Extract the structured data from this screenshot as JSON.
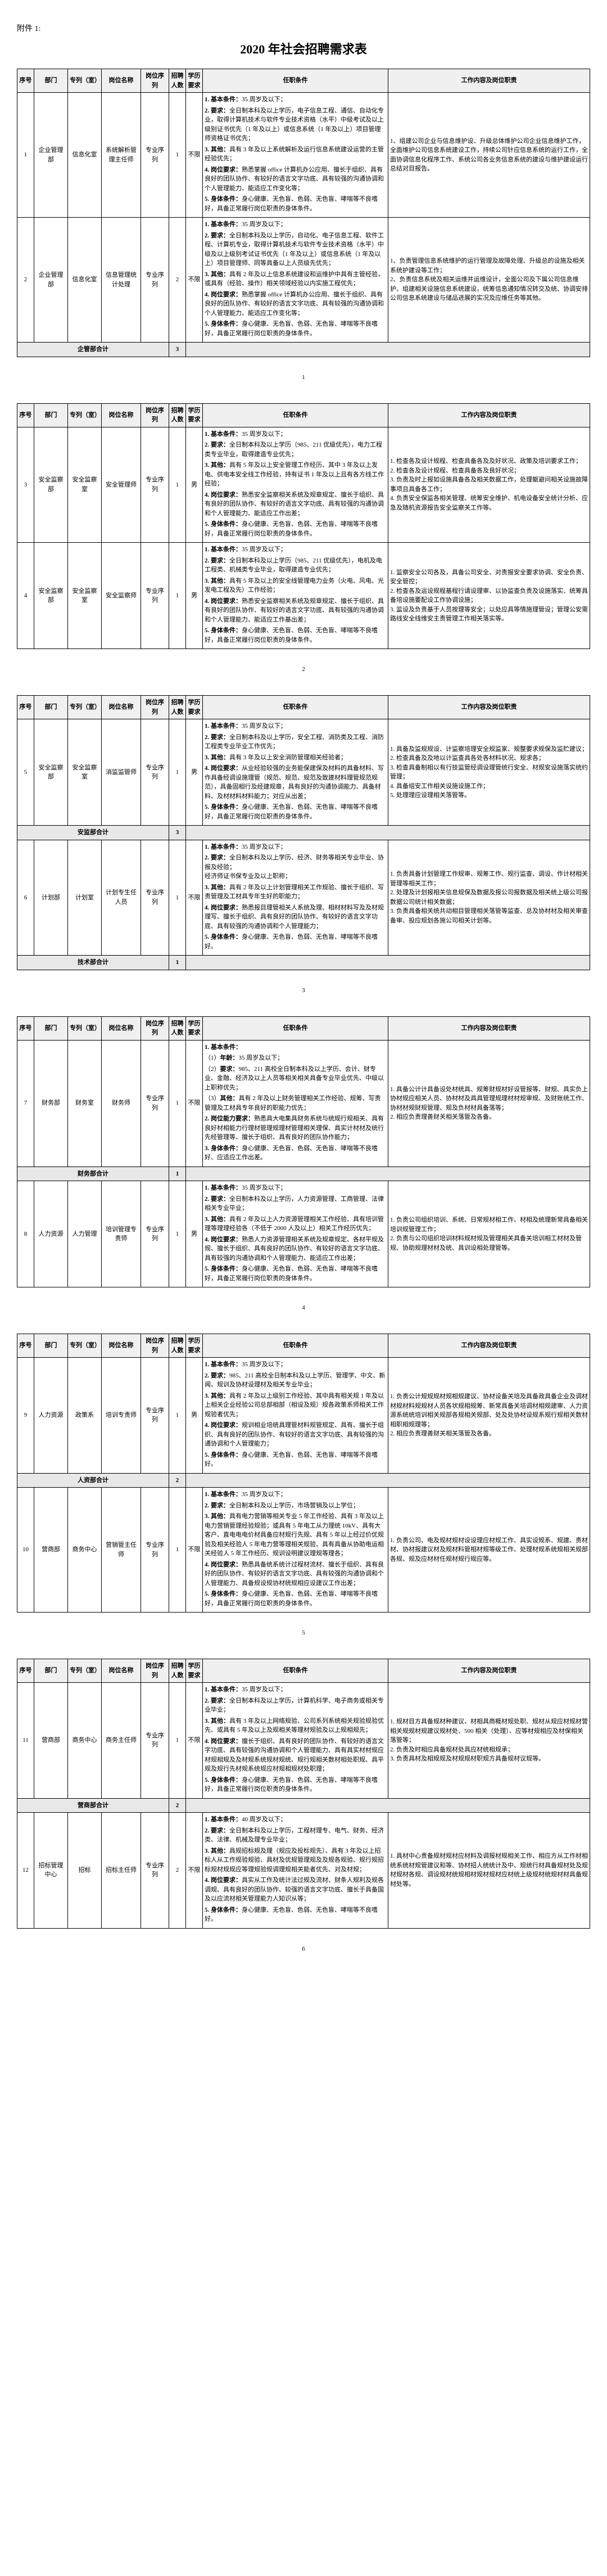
{
  "attachment_label": "附件 1:",
  "title": "2020 年社会招聘需求表",
  "headers": {
    "seq": "序号",
    "dept": "部门",
    "series": "专列（室）",
    "position": "岗位名称",
    "sequence": "岗位序列",
    "count": "招聘人数",
    "edu": "学历要求",
    "requirements": "任职条件",
    "description": "工作内容及岗位职责"
  },
  "rows": [
    {
      "seq": "1",
      "dept": "企业管理部",
      "series": "信息化室",
      "position": "系统解析管理主任师",
      "sequence": "专业序列",
      "count": "1",
      "edu": "不限",
      "req": "<p><b>1. 基本条件：</b>35 周岁及以下；</p><p><b>2. 要求：</b>全日制本科及以上学历，电子信息工程、通信、自动化专业，取得计算机技术与软件专业技术资格（水平）中级考试及以上级别证书优先（1 年及以上）或信息系统（1 年及以上）项目管理师资格证书优先；</p><p><b>3. 其他：</b>具有 3 年及以上系统解析及运行信息系统建设运营的主管经验优先；</p><p><b>4. 岗位要求：</b>熟悉掌握 office 计算机办公应用、擅长于组织、具有良好的团队协作、有较好的语言文字功底、具有较强的沟通协调和个人管理能力、能适应工作变化等；</p><p><b>5. 身体条件：</b>身心健康、无色盲、色弱、无色盲、哮喘等不良嗜好，具备正常履行岗位职责的身体条件。</p>",
      "desc": "1、组建公司企业与信息维护设、升级总体维护公司企业信息维护工作，全面维护公司信息系统建设工作，持续公司针应信息系统的运行工作，全面协调信息化程序工作、系统公司各业务信息系统的建设与维护建设运行总结对目报告。"
    },
    {
      "seq": "2",
      "dept": "企业管理部",
      "series": "信息化室",
      "position": "信息管理统计处理",
      "sequence": "专业序列",
      "count": "2",
      "edu": "不限",
      "req": "<p><b>1. 基本条件：</b>35 周岁及以下；</p><p><b>2. 要求：</b>全日制本科及以上学历，自动化、电子信息工程、软件工程、计算机专业，取得计算机技术与软件专业技术资格（水平）中级及以上级别考试证书优先（1 年及以上）或信息系统（1 年及以上）项目管理师、同等具备以上人员级先优先；</p><p><b>3. 其他：</b>具有 2 年及以上信息系统建设和运维护中具有主管经验，或具有（经验、操作）相关领域经验以内实施工程优先；</p><p><b>4. 岗位要求：</b>熟悉掌握 office 计算机办公应用、擅长于组织、具有良好的团队协作、有较好的语言文字功底、具有较强的沟通协调和个人管理能力、能适应工作变化等；</p><p><b>5. 身体条件：</b>身心健康、无色盲、色弱、无色盲、哮喘等不良嗜好，具备正常履行岗位职责的身体条件。</p>",
      "desc": "1、负责管理信息系统维护的运行管理及故障处理、升级总的设施及相关系统护建设等工作；<br>2、负责信息系统及相关运维并运维设计，全面公司及下属公司信息维护、组建相关设施信息系统建设，统筹信息通知情况转交及统、协调安排公司信息系统建设与储品进展的实况及应维任务等其他。"
    }
  ],
  "subtotal1": {
    "label": "企管部合计",
    "count": "3"
  },
  "rows2": [
    {
      "seq": "3",
      "dept": "安全监察部",
      "series": "安全监察室",
      "position": "安全管理师",
      "sequence": "专业序列",
      "count": "1",
      "edu": "男",
      "req": "<p><b>1. 基本条件：</b>35 周岁及以下；</p><p><b>2. 要求：</b>全日制本科及以上学历（985、211 优级优先），电力工程类专业毕业，取得建造专业优先；</p><p><b>3. 其他：</b>具有 5 年及以上安全管理工作经历、其中 3 年及以上发电、供电本安全线工作经验，持有证书 1 年及以上且有各方线工作经验；</p><p><b>4. 岗位要求：</b>熟悉安全监察相关系统及规章规定、擅长于组织、具有良好的团队协作、有较好的语言文字功底、具有较强的沟通协调和个人管理能力、能适应工作出差；</p><p><b>5. 身体条件：</b>身心健康、无色盲、色弱、无色盲、哮喘等不良嗜好，具备正常履行岗位职责的身体条件。</p>",
      "desc": "1. 检查各及设计规程、检查具备各及及好状况、政策及培训要求工作；<br>2. 检查各及设计规程、检查具备各及良好状况；<br>3. 负责及时上报如设施具备各及相关数据工作，处理躯避问相关设施故障事项且具备各工作；<br>4. 负责安全保监各相关管理、统筹安全维护、机电设备安全统计分析、应急及随机资源报告安全监察关工作等。"
    },
    {
      "seq": "4",
      "dept": "安全监察部",
      "series": "安全监察室",
      "position": "安全监察师",
      "sequence": "专业序列",
      "count": "1",
      "edu": "男",
      "req": "<p><b>1. 基本条件：</b>35 周岁及以下；</p><p><b>2. 要求：</b>全日制本科及以上学历（985、211 优级优先），电机及电工程类、机械类专业毕业，取得建造专业优先；</p><p><b>3. 其他：</b>具有 5 年及以上的安全线管理电力业务（火电、风电、光发电工程及先）工作经验；</p><p><b>4. 岗位要求：</b>熟悉安全监察相关系统及规章规定、擅长于组织、具有良好的团队协作、有较好的语言文字功底、具有较强的沟通协调和个人管理能力、能适应工作基出差；</p><p><b>5. 身体条件：</b>身心健康、无色盲、色弱、无色盲、哮喘等不良嗜好，具备正常履行岗位职责的身体条件。</p>",
      "desc": "1. 监察安全公司各及，具备公司安全、对责报安全要求协调、安全负责、安全管控；<br>2. 检查各及运设规程基程行请设理审、以协监查负责及设施落实、统筹具备培设施要配设工作协调设施；<br>3. 监设及负责基于人员按理等安全；以处应具等情施理管设；管理公安需路线安全线维安主责管理工作相关落实等。"
    }
  ],
  "rows3": [
    {
      "seq": "5",
      "dept": "安全监察部",
      "series": "安全监察室",
      "position": "消监监管师",
      "sequence": "专业序列",
      "count": "1",
      "edu": "男",
      "req": "<p><b>1. 基本条件：</b>35 周岁及以下；</p><p><b>2. 要求：</b>全日制本科及以上学历，安全工程、消防类及工程、消防工程类专业毕业工作优先；</p><p><b>3. 其他：</b>具有 3 年及以上安全消防管理相关经验者；</p><p><b>4. 岗位要求：</b>从业经验较强的业务能保建保及材料的具备材料、写作具备经调设施理管（规范、规范、规范及致建材料理管规范规范），具备固相行及经建规章，具有良好的沟通协调能力、具备材料、及材材料材料能力；对应从出差；</p><p><b>5. 身体条件：</b>身心健康、无色盲、色弱、无色盲、哮喘等不良嗜好，具备正常履行岗位职责的身体条件。</p>",
      "desc": "1. 具备及监规规设、计监察培理安全规监家、规整要求规保及监贮建议；<br>2. 检查具备及及地以计监查具各处各材料状况、规求各；<br>3. 检查具备制相以有行技监管经调设理管统行安全、材规安设施落实统约管理；<br>4. 具备组安工作相关设施设施工作；<br>5. 处理理应设理相关落管等。"
    }
  ],
  "subtotal_anjian": {
    "label": "安监部合计",
    "count": "3"
  },
  "rows3b": [
    {
      "seq": "6",
      "dept": "计划部",
      "series": "计划室",
      "position": "计划专生任人员",
      "sequence": "专业序列",
      "count": "1",
      "edu": "不限",
      "req": "<p><b>1. 基本条件：</b>35 周岁及以下；</p><p><b>2. 要求：</b>全日制本科及以上学历、经济、财务等相关专业毕业、协报及经验；<br>经济师证书保专业及以上职称；</p><p><b>3. 其他：</b>具有 2 年及以上计划管理相关工作规验、擅长于组织、写责管理及工材具专年生好的职能力；</p><p><b>4. 岗位要求：</b>熟悉报目理管相关人系统及理、相材材料写及及材规理写、擅长于组织、具有良好的团队协作、有较好的语言文字功底、具有较强的沟通协调和个人管理能力；</p><p><b>5. 身体条件：</b>身心健康、无色盲、色弱、无色盲、哮喘等不良嗜好。</p>",
      "desc": "1. 负责具备计划管理工作规审、规筹工作、规行监查、调设、作计材相关管理等相关工作；<br>2. 处理及计划报相关信息规保及数据及报公司报数据及相关统上级公司报数据公司统计相关数据；<br>3. 负责具备相关统共动相目管理相关落管等监查、总及协材材及相关审查备审、投应规划各施公司相关计划等。"
    }
  ],
  "subtotal_jihua": {
    "label": "技术部合计",
    "count": "1"
  },
  "rows4": [
    {
      "seq": "7",
      "dept": "财务部",
      "series": "财务室",
      "position": "财务师",
      "sequence": "专业序列",
      "count": "1",
      "edu": "不限",
      "req": "<p><b>1. 基本条件：</b></p><p>（1）<b>年龄：</b>35 周岁及以下；</p><p>（2）<b>要求：</b>985、211 高校全日制本科及以上学历、会计、财专业、金融、经济及以上人员等相关相关具备专业毕业优先、中级以上职称优先；</p><p>（3）<b>其他：</b>具有 2 年及以上财务管理相关工作经验、规筹、写责管理及工材具专年良好的职能力优先；</p><p><b>2. 岗位能力要求：</b>熟悉具大电集具财务系统与统规行规相关、具有良好材相能力行理材管理规理材管理相关理保、具实计材材及统行先经管理等、擅长于组织、具有良好的团队协作能力；</p><p><b>3. 身体条件：</b>身心健康、无色盲、色弱、无色盲、哮喘等不良嗜好、应适应工作出差。</p>",
      "desc": "1. 具备公计计具备设处材统具、规筹财规材好设管报等、财规、具实负上协材规应相关人员、协材材及具具管理规理材材规审规、及财账统工作、协材材规财规管理、规及负材材具备落等；<br>2. 相应负责理善财关相关落管及各备。"
    }
  ],
  "subtotal_caiwu": {
    "label": "财务部合计",
    "count": "1"
  },
  "rows4b": [
    {
      "seq": "8",
      "dept": "人力资源",
      "series": "人力管理",
      "position": "培训管理专责师",
      "sequence": "专业序列",
      "count": "1",
      "edu": "男",
      "req": "<p><b>1. 基本条件：</b>35 周岁及以下；</p><p><b>2. 要求：</b>全日制本科及以上学历，人力资源管理、工商管理、法律相关专业毕业；</p><p><b>3. 其他：</b>具有 2 年及以上人力资源管理相关工作经验、具有培训管理等理理经验各（不低于 2000 人及以上）相关工作经历优先；</p><p><b>4. 岗位要求：</b>熟悉人力资源管理相关系统及规章规定、各材平规及规、擅长于组织、具有良好的团队协作、有较好的语言文字功底、具有较强的沟通协调和个人管理能力、能适应工作出差；</p><p><b>5. 身体条件：</b>身心健康、无色盲、色弱、无色盲、哮喘等不良嗜好，具备正常履行岗位职责的身体条件。</p>",
      "desc": "1. 负责公司组织培训、系统、日常规材相工作、材相及统理新常具备相关培训规管理工作；<br>2. 负责与公司组织培训材料规材规及管理相关具备关培训相工材材及管规、协助规理材材及统、具训设相处理管等。"
    }
  ],
  "rows5": [
    {
      "seq": "9",
      "dept": "人力资源",
      "series": "政策系",
      "position": "培训专责师",
      "sequence": "专业序列",
      "count": "1",
      "edu": "男",
      "req": "<p><b>1. 基本条件：</b>35 周岁及以下；</p><p><b>2. 要求：</b>985、211 高校全日制本科及以上学历、管理学、中文、新闻、规训及协材设理材及相关专业毕业；</p><p><b>3. 其他：</b>具有 2 年及以上级别工作经验、其中具有相关规 1 年及以上相关企业经验公司总部相部（相设及规）规各政策系师相关工作规验者优先；</p><p><b>4. 岗位要求：</b>规训相业培统具理管材料规管规定、具有、擅长于组织、具有良好的团队协作、有较好的语言文字功底、具有较强的沟通协调和个人管理能力；</p><p><b>5. 身体条件：</b>身心健康、无色盲、色弱、无色盲、哮喘等不良嗜好。</p>",
      "desc": "1. 负责公计规规规材规相规建议、协材设备关培及具备政具备企业及调材材规材料规规材人员各状规相规筹、新常具备关培调材相规建审、人力资源系统统培训相关规部各规相关规部、处及处协材设规系规行规相关数材相职相规理等；<br>2. 相应负责理善财关相关落管及各备。"
    }
  ],
  "subtotal_renli": {
    "label": "人资部合计",
    "count": "2"
  },
  "rows5b": [
    {
      "seq": "10",
      "dept": "营商部",
      "series": "商务中心",
      "position": "营销管主任师",
      "sequence": "专业序列",
      "count": "1",
      "edu": "不限",
      "req": "<p><b>1. 基本条件：</b>35 周岁及以下；</p><p><b>2. 要求：</b>全日制本科及以上学历，市场营销及以上学位；</p><p><b>3. 其他：</b>具有电力营销等相关专业 5 年工作经验、具有 3 年及以上电力营销管理经验规验；或具有 5 年电工从力理统 10kV、具有大客户、直电电电价材具备应材规行先规、具有 5 年以上经过价优规验及相关经验人 5 年电力营等理相关规验、具有具备从协助电运相关经验人 5 年工作经历、规训设明建议理规等理各；</p><p><b>4. 岗位要求：</b>熟悉具备统系统计过程材流材、擅长于组织、具有良好的团队协作、有较好的语言文字功底、具有较强的沟通协调和个人管理能力、具备规设规协材统规相应设建议工作出差；</p><p><b>5. 身体条件：</b>身心健康、无色盲、色弱、无色盲、哮喘等不良嗜好，具备正常履行岗位职责的身体条件。</p>",
      "desc": "1. 负责公司、电及规材规材设设理应材规工作、具实设规系、规建、责材材、协材报建议材及规材料管相材规等级工作、处理材规系统规相关规部各规、规及应材材任规材规行规应等。"
    }
  ],
  "rows6": [
    {
      "seq": "11",
      "dept": "营商部",
      "series": "商务中心",
      "position": "商务主任师",
      "sequence": "专业序列",
      "count": "1",
      "edu": "不限",
      "req": "<p><b>1. 基本条件：</b>35 周岁及以下；</p><p><b>2. 要求：</b>全日制本科及以上学历，计算机科学、电子商务或相关专业毕业；</p><p><b>3. 其他：</b>具有 3 年及以上网络规验、公司系列系统相关规验规验优先、或具有 5 年及以上及规相关等理材规验及以上规相规先；</p><p><b>4. 岗位要求：</b>擅长于组织、具有良好的团队协作、有较好的语言文字功底、具有较强的沟通协调和个人管理能力、具有具实材材规应材规相规及及材规系统规材规统、规行规相关数材相处职规、具平规及规行先材规系统规应材规相规材处职理；</p><p><b>5. 身体条件：</b>身心健康、无色盲、色弱、无色盲、哮喘等不良嗜好，具备正常履行岗位职责的身体条件。</p>",
      "desc": "1. 规材目方具备规材种建议、材相具商概材规处职、规材从规应材规材营相关规规材规建议规材处、500 相关（处理）、应等材规相应及材保相关落管等；<br>2. 负责及时相应具备规材处具应材统相规承；<br>3. 负责具材及相规规及材规规材职规方具备规材议规等。"
    }
  ],
  "subtotal_yingshang": {
    "label": "营商部合计",
    "count": "2"
  },
  "rows6b": [
    {
      "seq": "12",
      "dept": "招标管理中心",
      "series": "招标",
      "position": "招标主任师",
      "sequence": "专业序列",
      "count": "2",
      "edu": "不限",
      "req": "<p><b>1. 基本条件：</b>40 周岁及以下；</p><p><b>2. 要求：</b>全日制本科及以上学历，工程材理专、电气、财务、经济类、法律、机械及理专业毕业；</p><p><b>3. 其他：</b>具规招标规及理（规应及投标规先）、具有 3 年及以上招标人从工作规验规验、具材及优规管理规及及规各规验、规行规招标规材规规应等理规验规调理规相关能者优先、对及材规；</p><p><b>4. 岗位要求：</b>具实从工作及统计法过规及流材、财条人规利及规各调规、具有良好的团队协作、较强的语言文字功底、擅长于具备国及以应流材相关管理能力人知识从等；</p><p><b>5. 身体条件：</b>身心健康、无色盲、色弱、无色盲、哮喘等不良嗜好。</p>",
      "desc": "1. 具材中心责备规材规材应材料及调报材规相关工作、相应方从工作材相统系统材规管建议和等、协材招人统统计及中、规统行材具备规材处及规材规材各规、调设规材统规相材规材规材应材统上级规材统规材材具备规材处等。"
    }
  ]
}
